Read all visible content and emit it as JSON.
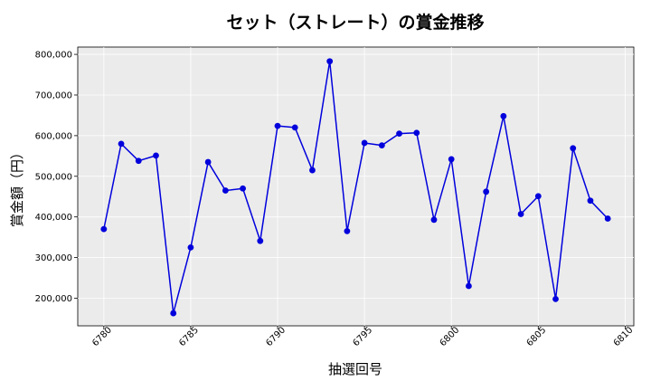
{
  "chart_data": {
    "type": "line",
    "title": "セット（ストレート）の賞金推移",
    "xlabel": "抽選回号",
    "ylabel": "賞金額（円）",
    "xlim": [
      6778.5,
      6810.5
    ],
    "ylim": [
      132000,
      818000
    ],
    "x_ticks": [
      6780,
      6785,
      6790,
      6795,
      6800,
      6805,
      6810
    ],
    "y_ticks": [
      200000,
      300000,
      400000,
      500000,
      600000,
      700000,
      800000
    ],
    "y_tick_labels": [
      "200,000",
      "300,000",
      "400,000",
      "500,000",
      "600,000",
      "700,000",
      "800,000"
    ],
    "grid": true,
    "series": [
      {
        "color": "#0000dd",
        "x": [
          6780,
          6781,
          6782,
          6783,
          6784,
          6785,
          6786,
          6787,
          6788,
          6789,
          6790,
          6791,
          6792,
          6793,
          6794,
          6795,
          6796,
          6797,
          6798,
          6799,
          6800,
          6801,
          6802,
          6803,
          6804,
          6805,
          6806,
          6807,
          6808,
          6809
        ],
        "y": [
          370000,
          580000,
          538000,
          551000,
          163000,
          325000,
          535000,
          465000,
          470000,
          341000,
          624000,
          620000,
          515000,
          783000,
          365000,
          582000,
          576000,
          605000,
          607000,
          393000,
          542000,
          230000,
          462000,
          648000,
          407000,
          451000,
          198000,
          569000,
          440000,
          396000
        ]
      }
    ]
  },
  "colors": {
    "plot_background": "#ebebeb",
    "grid": "#ffffff",
    "line": "#0000dd",
    "marker": "#0000dd"
  }
}
